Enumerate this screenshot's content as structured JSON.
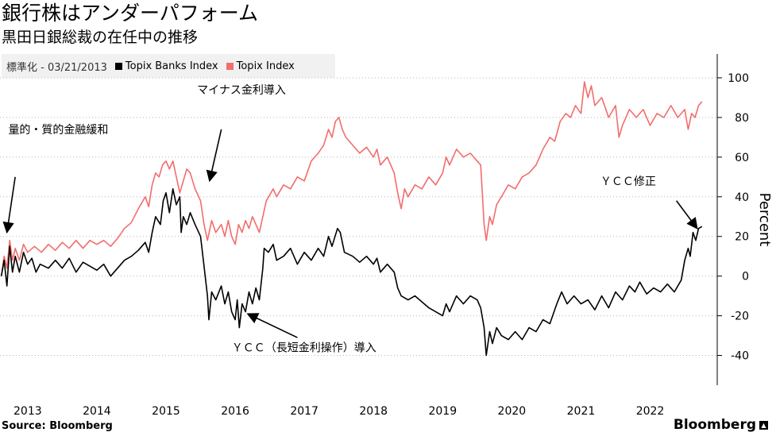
{
  "title": "銀行株はアンダーパフォーム",
  "subtitle": "黒田日銀総裁の在任中の推移",
  "legend": {
    "note": "標準化 - 03/21/2013",
    "items": [
      {
        "label": "Topix Banks Index",
        "color": "#000000"
      },
      {
        "label": "Topix Index",
        "color": "#f26d6d"
      }
    ]
  },
  "source": "Source: Bloomberg",
  "brand": "Bloomberg",
  "chart_data": {
    "type": "line",
    "title": "銀行株はアンダーパフォーム",
    "xlabel": "",
    "ylabel": "Percent",
    "ylim": [
      -55,
      112
    ],
    "xlim": [
      2012.6,
      2022.97
    ],
    "yticks": [
      -40,
      -20,
      0,
      20,
      40,
      60,
      80,
      100
    ],
    "xticks": [
      {
        "label": "2013",
        "x": 2013.0
      },
      {
        "label": "2014",
        "x": 2014.0
      },
      {
        "label": "2015",
        "x": 2015.0
      },
      {
        "label": "2016",
        "x": 2016.0
      },
      {
        "label": "2017",
        "x": 2017.0
      },
      {
        "label": "2018",
        "x": 2018.0
      },
      {
        "label": "2019",
        "x": 2019.0
      },
      {
        "label": "2020",
        "x": 2020.0
      },
      {
        "label": "2021",
        "x": 2021.0
      },
      {
        "label": "2022",
        "x": 2022.0
      }
    ],
    "grid": "horizontal-dotted",
    "series": [
      {
        "name": "Topix Banks Index",
        "color": "#000000",
        "points": [
          [
            2012.62,
            0
          ],
          [
            2012.66,
            8
          ],
          [
            2012.7,
            -5
          ],
          [
            2012.74,
            15
          ],
          [
            2012.78,
            2
          ],
          [
            2012.82,
            10
          ],
          [
            2012.88,
            2
          ],
          [
            2012.94,
            12
          ],
          [
            2013.0,
            6
          ],
          [
            2013.06,
            9
          ],
          [
            2013.12,
            2
          ],
          [
            2013.18,
            6
          ],
          [
            2013.3,
            4
          ],
          [
            2013.4,
            8
          ],
          [
            2013.5,
            4
          ],
          [
            2013.6,
            9
          ],
          [
            2013.7,
            2
          ],
          [
            2013.8,
            7
          ],
          [
            2013.9,
            5
          ],
          [
            2014.0,
            3
          ],
          [
            2014.1,
            6
          ],
          [
            2014.2,
            0
          ],
          [
            2014.3,
            4
          ],
          [
            2014.4,
            8
          ],
          [
            2014.5,
            10
          ],
          [
            2014.6,
            13
          ],
          [
            2014.7,
            17
          ],
          [
            2014.75,
            12
          ],
          [
            2014.8,
            22
          ],
          [
            2014.85,
            30
          ],
          [
            2014.92,
            26
          ],
          [
            2014.96,
            38
          ],
          [
            2015.0,
            42
          ],
          [
            2015.05,
            32
          ],
          [
            2015.1,
            44
          ],
          [
            2015.15,
            36
          ],
          [
            2015.2,
            40
          ],
          [
            2015.22,
            22
          ],
          [
            2015.25,
            30
          ],
          [
            2015.3,
            26
          ],
          [
            2015.35,
            32
          ],
          [
            2015.42,
            26
          ],
          [
            2015.5,
            20
          ],
          [
            2015.55,
            5
          ],
          [
            2015.6,
            -10
          ],
          [
            2015.62,
            -22
          ],
          [
            2015.66,
            -8
          ],
          [
            2015.72,
            -12
          ],
          [
            2015.8,
            -5
          ],
          [
            2015.85,
            -14
          ],
          [
            2015.9,
            -8
          ],
          [
            2015.95,
            -18
          ],
          [
            2016.0,
            -22
          ],
          [
            2016.03,
            -12
          ],
          [
            2016.06,
            -26
          ],
          [
            2016.1,
            -14
          ],
          [
            2016.15,
            -18
          ],
          [
            2016.2,
            -8
          ],
          [
            2016.25,
            -14
          ],
          [
            2016.3,
            -6
          ],
          [
            2016.35,
            -12
          ],
          [
            2016.4,
            4
          ],
          [
            2016.42,
            14
          ],
          [
            2016.48,
            12
          ],
          [
            2016.55,
            16
          ],
          [
            2016.6,
            8
          ],
          [
            2016.7,
            10
          ],
          [
            2016.8,
            14
          ],
          [
            2016.9,
            6
          ],
          [
            2017.0,
            12
          ],
          [
            2017.1,
            8
          ],
          [
            2017.2,
            14
          ],
          [
            2017.28,
            10
          ],
          [
            2017.35,
            20
          ],
          [
            2017.4,
            15
          ],
          [
            2017.48,
            24
          ],
          [
            2017.52,
            22
          ],
          [
            2017.58,
            12
          ],
          [
            2017.7,
            10
          ],
          [
            2017.8,
            7
          ],
          [
            2017.9,
            10
          ],
          [
            2018.0,
            6
          ],
          [
            2018.05,
            9
          ],
          [
            2018.1,
            2
          ],
          [
            2018.2,
            6
          ],
          [
            2018.3,
            2
          ],
          [
            2018.35,
            -6
          ],
          [
            2018.4,
            -10
          ],
          [
            2018.5,
            -12
          ],
          [
            2018.6,
            -10
          ],
          [
            2018.7,
            -13
          ],
          [
            2018.8,
            -16
          ],
          [
            2018.9,
            -18
          ],
          [
            2019.0,
            -20
          ],
          [
            2019.05,
            -14
          ],
          [
            2019.1,
            -18
          ],
          [
            2019.2,
            -10
          ],
          [
            2019.3,
            -14
          ],
          [
            2019.4,
            -10
          ],
          [
            2019.5,
            -12
          ],
          [
            2019.55,
            -16
          ],
          [
            2019.6,
            -26
          ],
          [
            2019.63,
            -40
          ],
          [
            2019.68,
            -28
          ],
          [
            2019.72,
            -34
          ],
          [
            2019.78,
            -26
          ],
          [
            2019.85,
            -30
          ],
          [
            2019.95,
            -32
          ],
          [
            2020.05,
            -28
          ],
          [
            2020.15,
            -32
          ],
          [
            2020.25,
            -26
          ],
          [
            2020.35,
            -28
          ],
          [
            2020.45,
            -22
          ],
          [
            2020.55,
            -24
          ],
          [
            2020.65,
            -14
          ],
          [
            2020.72,
            -8
          ],
          [
            2020.8,
            -14
          ],
          [
            2020.9,
            -10
          ],
          [
            2021.0,
            -14
          ],
          [
            2021.1,
            -12
          ],
          [
            2021.2,
            -17
          ],
          [
            2021.3,
            -10
          ],
          [
            2021.4,
            -16
          ],
          [
            2021.5,
            -8
          ],
          [
            2021.6,
            -12
          ],
          [
            2021.7,
            -5
          ],
          [
            2021.78,
            -8
          ],
          [
            2021.85,
            -3
          ],
          [
            2021.95,
            -9
          ],
          [
            2022.05,
            -6
          ],
          [
            2022.15,
            -8
          ],
          [
            2022.25,
            -4
          ],
          [
            2022.35,
            -8
          ],
          [
            2022.45,
            -2
          ],
          [
            2022.5,
            8
          ],
          [
            2022.55,
            14
          ],
          [
            2022.58,
            10
          ],
          [
            2022.62,
            22
          ],
          [
            2022.66,
            18
          ],
          [
            2022.7,
            24
          ],
          [
            2022.75,
            25
          ]
        ]
      },
      {
        "name": "Topix Index",
        "color": "#f26d6d",
        "points": [
          [
            2012.62,
            0
          ],
          [
            2012.66,
            10
          ],
          [
            2012.7,
            4
          ],
          [
            2012.74,
            18
          ],
          [
            2012.78,
            8
          ],
          [
            2012.82,
            14
          ],
          [
            2012.88,
            8
          ],
          [
            2012.94,
            16
          ],
          [
            2013.0,
            12
          ],
          [
            2013.1,
            15
          ],
          [
            2013.2,
            12
          ],
          [
            2013.3,
            16
          ],
          [
            2013.4,
            13
          ],
          [
            2013.5,
            17
          ],
          [
            2013.6,
            14
          ],
          [
            2013.7,
            18
          ],
          [
            2013.8,
            14
          ],
          [
            2013.9,
            18
          ],
          [
            2014.0,
            16
          ],
          [
            2014.1,
            18
          ],
          [
            2014.2,
            15
          ],
          [
            2014.3,
            19
          ],
          [
            2014.4,
            24
          ],
          [
            2014.5,
            27
          ],
          [
            2014.6,
            34
          ],
          [
            2014.7,
            40
          ],
          [
            2014.75,
            35
          ],
          [
            2014.8,
            46
          ],
          [
            2014.85,
            52
          ],
          [
            2014.9,
            50
          ],
          [
            2014.95,
            56
          ],
          [
            2015.0,
            58
          ],
          [
            2015.05,
            54
          ],
          [
            2015.1,
            58
          ],
          [
            2015.15,
            50
          ],
          [
            2015.2,
            42
          ],
          [
            2015.25,
            48
          ],
          [
            2015.3,
            54
          ],
          [
            2015.35,
            52
          ],
          [
            2015.42,
            44
          ],
          [
            2015.5,
            38
          ],
          [
            2015.55,
            26
          ],
          [
            2015.6,
            18
          ],
          [
            2015.66,
            28
          ],
          [
            2015.72,
            22
          ],
          [
            2015.8,
            26
          ],
          [
            2015.85,
            20
          ],
          [
            2015.9,
            28
          ],
          [
            2015.95,
            20
          ],
          [
            2016.0,
            16
          ],
          [
            2016.05,
            26
          ],
          [
            2016.1,
            22
          ],
          [
            2016.15,
            28
          ],
          [
            2016.2,
            24
          ],
          [
            2016.25,
            30
          ],
          [
            2016.3,
            26
          ],
          [
            2016.35,
            22
          ],
          [
            2016.4,
            30
          ],
          [
            2016.45,
            38
          ],
          [
            2016.55,
            44
          ],
          [
            2016.6,
            40
          ],
          [
            2016.7,
            46
          ],
          [
            2016.8,
            44
          ],
          [
            2016.9,
            50
          ],
          [
            2017.0,
            48
          ],
          [
            2017.1,
            58
          ],
          [
            2017.2,
            62
          ],
          [
            2017.28,
            66
          ],
          [
            2017.35,
            74
          ],
          [
            2017.4,
            70
          ],
          [
            2017.45,
            78
          ],
          [
            2017.5,
            80
          ],
          [
            2017.55,
            74
          ],
          [
            2017.6,
            70
          ],
          [
            2017.7,
            66
          ],
          [
            2017.8,
            62
          ],
          [
            2017.9,
            65
          ],
          [
            2018.0,
            60
          ],
          [
            2018.05,
            64
          ],
          [
            2018.1,
            56
          ],
          [
            2018.2,
            60
          ],
          [
            2018.3,
            52
          ],
          [
            2018.35,
            42
          ],
          [
            2018.4,
            34
          ],
          [
            2018.45,
            44
          ],
          [
            2018.5,
            40
          ],
          [
            2018.6,
            46
          ],
          [
            2018.7,
            44
          ],
          [
            2018.8,
            50
          ],
          [
            2018.9,
            46
          ],
          [
            2019.0,
            52
          ],
          [
            2019.05,
            60
          ],
          [
            2019.1,
            56
          ],
          [
            2019.2,
            64
          ],
          [
            2019.3,
            60
          ],
          [
            2019.4,
            62
          ],
          [
            2019.5,
            58
          ],
          [
            2019.55,
            56
          ],
          [
            2019.6,
            26
          ],
          [
            2019.63,
            18
          ],
          [
            2019.68,
            30
          ],
          [
            2019.72,
            26
          ],
          [
            2019.78,
            36
          ],
          [
            2019.85,
            40
          ],
          [
            2019.95,
            46
          ],
          [
            2020.05,
            44
          ],
          [
            2020.15,
            50
          ],
          [
            2020.25,
            52
          ],
          [
            2020.35,
            56
          ],
          [
            2020.45,
            64
          ],
          [
            2020.55,
            70
          ],
          [
            2020.62,
            68
          ],
          [
            2020.7,
            78
          ],
          [
            2020.78,
            82
          ],
          [
            2020.85,
            80
          ],
          [
            2020.92,
            86
          ],
          [
            2021.0,
            82
          ],
          [
            2021.05,
            98
          ],
          [
            2021.1,
            90
          ],
          [
            2021.15,
            96
          ],
          [
            2021.2,
            86
          ],
          [
            2021.3,
            90
          ],
          [
            2021.4,
            80
          ],
          [
            2021.5,
            86
          ],
          [
            2021.55,
            70
          ],
          [
            2021.6,
            76
          ],
          [
            2021.7,
            84
          ],
          [
            2021.8,
            80
          ],
          [
            2021.9,
            84
          ],
          [
            2022.0,
            76
          ],
          [
            2022.1,
            82
          ],
          [
            2022.2,
            80
          ],
          [
            2022.3,
            86
          ],
          [
            2022.4,
            80
          ],
          [
            2022.5,
            84
          ],
          [
            2022.55,
            74
          ],
          [
            2022.6,
            82
          ],
          [
            2022.65,
            80
          ],
          [
            2022.7,
            86
          ],
          [
            2022.75,
            88
          ]
        ]
      }
    ],
    "annotations": [
      {
        "id": "qqe",
        "text": "量的・質的金融緩和",
        "x": 2012.72,
        "y": 72,
        "arrow_from": [
          2012.82,
          50
        ],
        "arrow_to": [
          2012.7,
          22
        ]
      },
      {
        "id": "negrate",
        "text": "マイナス金利導入",
        "x": 2015.45,
        "y": 92,
        "arrow_from": [
          2015.8,
          74
        ],
        "arrow_to": [
          2015.63,
          48
        ]
      },
      {
        "id": "ycc",
        "text": "ＹＣＣ（長短金利操作）導入",
        "x": 2015.95,
        "y": -38,
        "arrow_from": [
          2016.9,
          -31
        ],
        "arrow_to": [
          2016.18,
          -19
        ]
      },
      {
        "id": "yccmod",
        "text": "ＹＣＣ修正",
        "x": 2021.28,
        "y": 46,
        "arrow_from": [
          2022.38,
          38
        ],
        "arrow_to": [
          2022.68,
          24
        ]
      }
    ]
  }
}
